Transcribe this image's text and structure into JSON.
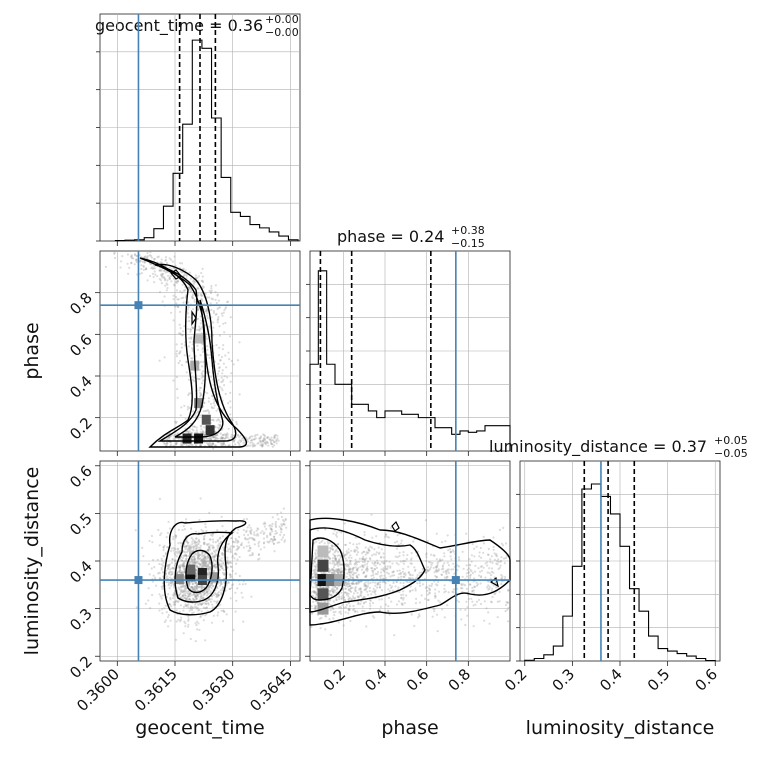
{
  "colors": {
    "truth": "#4682b4",
    "hist": "#000000",
    "grid": "#b0b0b0",
    "scatter": "#9a9a9a"
  },
  "chart_data": [
    {
      "type": "histogram",
      "panel": "geocent_time-marginal",
      "title": {
        "main": "geocent_time = 0.36",
        "sup": "+0.00",
        "sub": "−0.00"
      },
      "xlim": [
        0.35955,
        0.36475
      ],
      "bin_edges": [
        0.35995,
        0.3602,
        0.36045,
        0.3607,
        0.36095,
        0.3612,
        0.36145,
        0.3617,
        0.36195,
        0.3622,
        0.36245,
        0.3627,
        0.36295,
        0.3632,
        0.36345,
        0.3637,
        0.36395,
        0.3642,
        0.36445,
        0.3647
      ],
      "counts": [
        1,
        2,
        3,
        8,
        30,
        85,
        165,
        285,
        490,
        470,
        300,
        155,
        70,
        60,
        40,
        32,
        22,
        12,
        3
      ],
      "quantiles": [
        0.36162,
        0.36215,
        0.36255
      ],
      "truth": 0.36055
    },
    {
      "type": "contour-scatter",
      "panel": "geocent_time-vs-phase",
      "xlim": [
        0.35955,
        0.36475
      ],
      "ylim": [
        0.04,
        1.0
      ],
      "truth": {
        "x": 0.36055,
        "y": 0.74
      },
      "ylabel": "phase",
      "yticks": [
        "0.2",
        "0.4",
        "0.6",
        "0.8"
      ],
      "density_ridge": [
        [
          0.3605,
          0.97
        ],
        [
          0.361,
          0.94
        ],
        [
          0.3615,
          0.88
        ],
        [
          0.362,
          0.8
        ],
        [
          0.3622,
          0.7
        ],
        [
          0.3622,
          0.55
        ],
        [
          0.3623,
          0.4
        ],
        [
          0.3624,
          0.25
        ],
        [
          0.3622,
          0.12
        ],
        [
          0.3618,
          0.1
        ]
      ]
    },
    {
      "type": "contour-scatter",
      "panel": "geocent_time-vs-luminosity_distance",
      "xlim": [
        0.35955,
        0.36475
      ],
      "ylim": [
        0.19,
        0.61
      ],
      "truth": {
        "x": 0.36055,
        "y": 0.36
      },
      "xlabel": "geocent_time",
      "ylabel": "luminosity_distance",
      "xticks": [
        "0.3600",
        "0.3615",
        "0.3630",
        "0.3645"
      ],
      "yticks": [
        "0.2",
        "0.3",
        "0.4",
        "0.5",
        "0.6"
      ],
      "mode": {
        "x": 0.362,
        "y": 0.365
      }
    },
    {
      "type": "histogram",
      "panel": "phase-marginal",
      "title": {
        "main": "phase = 0.24",
        "sup": "+0.38",
        "sub": "−0.15"
      },
      "xlim": [
        0.04,
        1.0
      ],
      "bin_edges": [
        0.04,
        0.08,
        0.12,
        0.16,
        0.2,
        0.24,
        0.28,
        0.32,
        0.36,
        0.4,
        0.44,
        0.48,
        0.52,
        0.56,
        0.6,
        0.64,
        0.68,
        0.72,
        0.76,
        0.8,
        0.84,
        0.88,
        0.92,
        0.96,
        1.0
      ],
      "counts": [
        130,
        270,
        130,
        100,
        100,
        70,
        70,
        60,
        50,
        60,
        60,
        55,
        55,
        50,
        50,
        35,
        35,
        25,
        30,
        28,
        30,
        38,
        38,
        38
      ],
      "quantiles": [
        0.09,
        0.24,
        0.62
      ],
      "truth": 0.74
    },
    {
      "type": "contour-scatter",
      "panel": "phase-vs-luminosity_distance",
      "xlim": [
        0.04,
        1.0
      ],
      "ylim": [
        0.19,
        0.61
      ],
      "truth": {
        "x": 0.74,
        "y": 0.36
      },
      "xlabel": "phase",
      "xticks": [
        "0.2",
        "0.4",
        "0.6",
        "0.8"
      ],
      "mode": {
        "x": 0.1,
        "y": 0.36
      }
    },
    {
      "type": "histogram",
      "panel": "luminosity_distance-marginal",
      "title": {
        "main": "luminosity_distance = 0.37",
        "sup": "+0.05",
        "sub": "−0.05"
      },
      "xlim": [
        0.19,
        0.61
      ],
      "bin_edges": [
        0.2,
        0.22,
        0.24,
        0.26,
        0.28,
        0.3,
        0.32,
        0.34,
        0.36,
        0.38,
        0.4,
        0.42,
        0.44,
        0.46,
        0.48,
        0.5,
        0.52,
        0.54,
        0.56,
        0.58,
        0.6
      ],
      "counts": [
        3,
        10,
        25,
        60,
        180,
        380,
        690,
        710,
        660,
        590,
        460,
        290,
        200,
        100,
        50,
        40,
        30,
        20,
        10,
        2
      ],
      "quantiles": [
        0.325,
        0.375,
        0.43
      ],
      "truth": 0.36,
      "xlabel": "luminosity_distance",
      "xticks": [
        "0.2",
        "0.3",
        "0.4",
        "0.5",
        "0.6"
      ]
    }
  ]
}
